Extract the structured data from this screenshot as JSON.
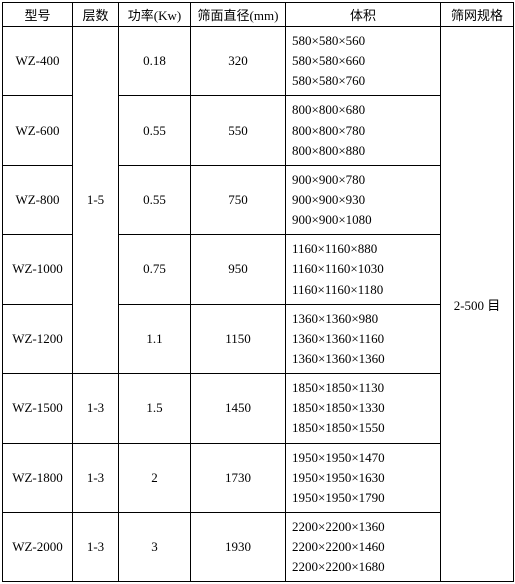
{
  "headers": {
    "model": "型号",
    "layers": "层数",
    "power": "功率(Kw)",
    "diameter": "筛面直径(mm)",
    "volume": "体积",
    "mesh": "筛网规格"
  },
  "layerGroup15": "1-5",
  "layerGroup13a": "1-3",
  "layerGroup13b": "1-3",
  "layerGroup13c": "1-3",
  "meshSpec": "2-500 目",
  "rows": [
    {
      "model": "WZ-400",
      "power": "0.18",
      "diameter": "320",
      "volumes": [
        "580×580×560",
        "580×580×660",
        "580×580×760"
      ]
    },
    {
      "model": "WZ-600",
      "power": "0.55",
      "diameter": "550",
      "volumes": [
        "800×800×680",
        "800×800×780",
        "800×800×880"
      ]
    },
    {
      "model": "WZ-800",
      "power": "0.55",
      "diameter": "750",
      "volumes": [
        "900×900×780",
        "900×900×930",
        "900×900×1080"
      ]
    },
    {
      "model": "WZ-1000",
      "power": "0.75",
      "diameter": "950",
      "volumes": [
        "1160×1160×880",
        "1160×1160×1030",
        "1160×1160×1180"
      ]
    },
    {
      "model": "WZ-1200",
      "power": "1.1",
      "diameter": "1150",
      "volumes": [
        "1360×1360×980",
        "1360×1360×1160",
        "1360×1360×1360"
      ]
    },
    {
      "model": "WZ-1500",
      "power": "1.5",
      "diameter": "1450",
      "volumes": [
        "1850×1850×1130",
        "1850×1850×1330",
        "1850×1850×1550"
      ]
    },
    {
      "model": "WZ-1800",
      "power": "2",
      "diameter": "1730",
      "volumes": [
        "1950×1950×1470",
        "1950×1950×1630",
        "1950×1950×1790"
      ]
    },
    {
      "model": "WZ-2000",
      "power": "3",
      "diameter": "1930",
      "volumes": [
        "2200×2200×1360",
        "2200×2200×1460",
        "2200×2200×1680"
      ]
    }
  ]
}
